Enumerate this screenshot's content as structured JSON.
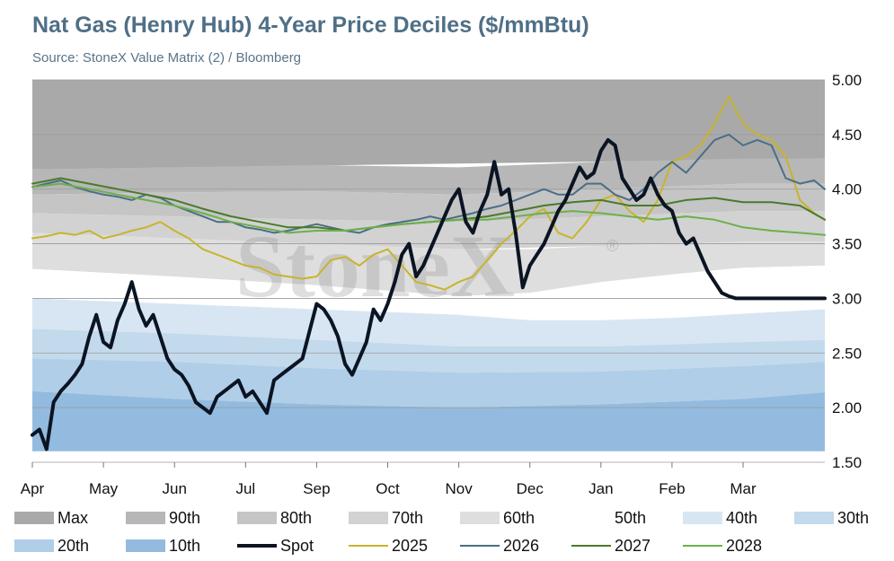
{
  "title": "Nat Gas (Henry Hub) 4-Year Price Deciles ($/mmBtu)",
  "subtitle": "Source: StoneX Value Matrix (2) / Bloomberg",
  "watermark": "StoneX",
  "watermark_mark": "®",
  "chart_data": {
    "type": "area",
    "x_ticks": [
      "Apr",
      "May",
      "Jun",
      "Jul",
      "Sep",
      "Oct",
      "Nov",
      "Dec",
      "Jan",
      "Feb",
      "Mar"
    ],
    "y_ticks": [
      "1.50",
      "2.00",
      "2.50",
      "3.00",
      "3.50",
      "4.00",
      "4.50",
      "5.00"
    ],
    "ylim": [
      1.5,
      5.0
    ],
    "xlim": [
      0,
      11.15
    ],
    "y_axis_position": "right",
    "grid": true,
    "legend_position": "bottom",
    "decile_bands": [
      {
        "name": "Max",
        "color": "#a9a9a9",
        "x": [
          0,
          11.15
        ],
        "upper": [
          5.0,
          5.0
        ],
        "lower": [
          4.18,
          4.28
        ]
      },
      {
        "name": "90th",
        "color": "#b7b7b7",
        "x": [
          0,
          2,
          4,
          6,
          8,
          10,
          11.15
        ],
        "upper": [
          4.18,
          4.2,
          4.22,
          4.2,
          4.25,
          4.28,
          4.28
        ],
        "lower": [
          3.95,
          3.97,
          3.98,
          3.95,
          4.0,
          4.05,
          4.05
        ]
      },
      {
        "name": "80th",
        "color": "#c5c5c5",
        "x": [
          0,
          2,
          4,
          6,
          8,
          10,
          11.15
        ],
        "upper": [
          3.95,
          3.97,
          3.98,
          3.95,
          4.0,
          4.05,
          4.05
        ],
        "lower": [
          3.78,
          3.75,
          3.72,
          3.7,
          3.75,
          3.8,
          3.8
        ]
      },
      {
        "name": "70th",
        "color": "#d2d2d2",
        "x": [
          0,
          2,
          4,
          6,
          8,
          10,
          11.15
        ],
        "upper": [
          3.78,
          3.75,
          3.72,
          3.7,
          3.75,
          3.8,
          3.8
        ],
        "lower": [
          3.6,
          3.55,
          3.5,
          3.45,
          3.48,
          3.52,
          3.52
        ]
      },
      {
        "name": "60th",
        "color": "#dedede",
        "x": [
          0,
          2,
          4,
          6,
          7,
          8,
          9,
          10,
          11.15
        ],
        "upper": [
          3.6,
          3.55,
          3.5,
          3.45,
          3.45,
          3.48,
          3.5,
          3.52,
          3.52
        ],
        "lower": [
          3.27,
          3.2,
          3.12,
          3.02,
          3.05,
          3.15,
          3.22,
          3.28,
          3.3
        ]
      },
      {
        "name": "50th",
        "color": "#ffffff",
        "x": [
          0,
          2,
          4,
          6,
          7,
          8,
          9,
          10,
          11.15
        ],
        "upper": [
          3.27,
          3.2,
          3.12,
          3.02,
          3.05,
          3.15,
          3.22,
          3.28,
          3.3
        ],
        "lower": [
          3.0,
          2.95,
          2.9,
          2.85,
          2.8,
          2.8,
          2.82,
          2.86,
          2.9
        ]
      },
      {
        "name": "40th",
        "color": "#d7e6f2",
        "x": [
          0,
          2,
          4,
          6,
          7,
          8,
          9,
          10,
          11.15
        ],
        "upper": [
          3.0,
          2.95,
          2.9,
          2.85,
          2.8,
          2.8,
          2.82,
          2.86,
          2.9
        ],
        "lower": [
          2.72,
          2.68,
          2.62,
          2.56,
          2.55,
          2.56,
          2.58,
          2.6,
          2.62
        ]
      },
      {
        "name": "30th",
        "color": "#c3d9ec",
        "x": [
          0,
          2,
          4,
          6,
          8,
          10,
          11.15
        ],
        "upper": [
          2.72,
          2.68,
          2.62,
          2.56,
          2.56,
          2.6,
          2.62
        ],
        "lower": [
          2.45,
          2.42,
          2.36,
          2.32,
          2.33,
          2.38,
          2.42
        ]
      },
      {
        "name": "20th",
        "color": "#b0cee7",
        "x": [
          0,
          2,
          4,
          6,
          8,
          10,
          11.15
        ],
        "upper": [
          2.45,
          2.42,
          2.36,
          2.32,
          2.33,
          2.38,
          2.42
        ],
        "lower": [
          2.15,
          2.08,
          2.03,
          2.0,
          2.03,
          2.08,
          2.14
        ]
      },
      {
        "name": "10th",
        "color": "#93bbdf",
        "x": [
          0,
          2,
          4,
          6,
          8,
          10,
          11.15
        ],
        "upper": [
          2.15,
          2.08,
          2.03,
          2.0,
          2.03,
          2.08,
          2.14
        ],
        "lower": [
          1.6,
          1.6,
          1.6,
          1.6,
          1.6,
          1.6,
          1.6
        ]
      }
    ],
    "series": [
      {
        "name": "2025",
        "color": "#c8b42c",
        "width": 2,
        "x": [
          0,
          0.2,
          0.4,
          0.6,
          0.8,
          1.0,
          1.2,
          1.4,
          1.6,
          1.8,
          2.0,
          2.2,
          2.4,
          2.6,
          2.8,
          3.0,
          3.2,
          3.4,
          3.6,
          3.8,
          4.0,
          4.2,
          4.4,
          4.6,
          4.8,
          5.0,
          5.2,
          5.4,
          5.6,
          5.8,
          6.0,
          6.2,
          6.4,
          6.6,
          6.8,
          7.0,
          7.2,
          7.4,
          7.6,
          7.8,
          8.0,
          8.2,
          8.4,
          8.6,
          8.8,
          9.0,
          9.2,
          9.4,
          9.6,
          9.8,
          10.0,
          10.2,
          10.4,
          10.6,
          10.8,
          11.0,
          11.15
        ],
        "y": [
          3.55,
          3.57,
          3.6,
          3.58,
          3.62,
          3.55,
          3.58,
          3.62,
          3.65,
          3.7,
          3.62,
          3.55,
          3.45,
          3.4,
          3.35,
          3.3,
          3.28,
          3.22,
          3.2,
          3.18,
          3.2,
          3.35,
          3.38,
          3.3,
          3.4,
          3.45,
          3.3,
          3.15,
          3.12,
          3.08,
          3.15,
          3.2,
          3.35,
          3.5,
          3.62,
          3.75,
          3.82,
          3.6,
          3.55,
          3.7,
          3.9,
          3.95,
          3.8,
          3.7,
          3.9,
          4.25,
          4.3,
          4.4,
          4.6,
          4.85,
          4.6,
          4.5,
          4.45,
          4.3,
          3.9,
          3.78,
          3.72
        ]
      },
      {
        "name": "2026",
        "color": "#4b6e86",
        "width": 2,
        "x": [
          0,
          0.2,
          0.4,
          0.6,
          0.8,
          1.0,
          1.2,
          1.4,
          1.6,
          1.8,
          2.0,
          2.2,
          2.4,
          2.6,
          2.8,
          3.0,
          3.2,
          3.4,
          3.6,
          3.8,
          4.0,
          4.2,
          4.4,
          4.6,
          4.8,
          5.0,
          5.2,
          5.4,
          5.6,
          5.8,
          6.0,
          6.2,
          6.4,
          6.6,
          6.8,
          7.0,
          7.2,
          7.4,
          7.6,
          7.8,
          8.0,
          8.2,
          8.4,
          8.6,
          8.8,
          9.0,
          9.2,
          9.4,
          9.6,
          9.8,
          10.0,
          10.2,
          10.4,
          10.6,
          10.8,
          11.0,
          11.15
        ],
        "y": [
          4.02,
          4.05,
          4.08,
          4.02,
          3.98,
          3.95,
          3.93,
          3.9,
          3.95,
          3.92,
          3.85,
          3.8,
          3.75,
          3.7,
          3.7,
          3.65,
          3.63,
          3.6,
          3.62,
          3.65,
          3.68,
          3.65,
          3.62,
          3.6,
          3.65,
          3.68,
          3.7,
          3.72,
          3.75,
          3.72,
          3.75,
          3.78,
          3.82,
          3.85,
          3.9,
          3.95,
          4.0,
          3.95,
          3.95,
          4.05,
          4.05,
          3.95,
          3.9,
          4.0,
          4.15,
          4.25,
          4.15,
          4.3,
          4.45,
          4.5,
          4.4,
          4.45,
          4.4,
          4.1,
          4.05,
          4.08,
          4.0
        ]
      },
      {
        "name": "2027",
        "color": "#4a7a2a",
        "width": 2,
        "x": [
          0,
          0.4,
          0.8,
          1.2,
          1.6,
          2.0,
          2.4,
          2.8,
          3.2,
          3.6,
          4.0,
          4.4,
          4.8,
          5.2,
          5.6,
          6.0,
          6.4,
          6.8,
          7.2,
          7.6,
          8.0,
          8.4,
          8.8,
          9.2,
          9.6,
          10.0,
          10.4,
          10.8,
          11.15
        ],
        "y": [
          4.05,
          4.1,
          4.05,
          4.0,
          3.95,
          3.9,
          3.82,
          3.75,
          3.7,
          3.65,
          3.65,
          3.62,
          3.65,
          3.68,
          3.7,
          3.72,
          3.75,
          3.8,
          3.85,
          3.88,
          3.9,
          3.85,
          3.85,
          3.9,
          3.92,
          3.88,
          3.88,
          3.85,
          3.72
        ]
      },
      {
        "name": "2028",
        "color": "#6cb04a",
        "width": 2,
        "x": [
          0,
          0.4,
          0.8,
          1.2,
          1.6,
          2.0,
          2.4,
          2.8,
          3.2,
          3.6,
          4.0,
          4.4,
          4.8,
          5.2,
          5.6,
          6.0,
          6.4,
          6.8,
          7.2,
          7.6,
          8.0,
          8.4,
          8.8,
          9.2,
          9.6,
          10.0,
          10.4,
          10.8,
          11.15
        ],
        "y": [
          4.02,
          4.05,
          4.0,
          3.95,
          3.9,
          3.85,
          3.78,
          3.7,
          3.65,
          3.6,
          3.62,
          3.62,
          3.65,
          3.68,
          3.7,
          3.72,
          3.72,
          3.75,
          3.78,
          3.8,
          3.78,
          3.75,
          3.72,
          3.75,
          3.72,
          3.65,
          3.62,
          3.6,
          3.58
        ]
      },
      {
        "name": "Spot",
        "color": "#0b1423",
        "width": 4,
        "x": [
          0,
          0.1,
          0.2,
          0.3,
          0.4,
          0.5,
          0.6,
          0.7,
          0.8,
          0.9,
          1.0,
          1.1,
          1.2,
          1.3,
          1.4,
          1.5,
          1.6,
          1.7,
          1.8,
          1.9,
          2.0,
          2.1,
          2.2,
          2.3,
          2.4,
          2.5,
          2.6,
          2.7,
          2.8,
          2.9,
          3.0,
          3.1,
          3.2,
          3.3,
          3.4,
          3.5,
          3.6,
          3.7,
          3.8,
          3.9,
          4.0,
          4.1,
          4.2,
          4.3,
          4.4,
          4.5,
          4.6,
          4.7,
          4.8,
          4.9,
          5.0,
          5.1,
          5.2,
          5.3,
          5.4,
          5.5,
          5.6,
          5.7,
          5.8,
          5.9,
          6.0,
          6.1,
          6.2,
          6.3,
          6.4,
          6.5,
          6.6,
          6.7,
          6.8,
          6.9,
          7.0,
          7.1,
          7.2,
          7.3,
          7.4,
          7.5,
          7.6,
          7.7,
          7.8,
          7.9,
          8.0,
          8.1,
          8.2,
          8.3,
          8.4,
          8.5,
          8.6,
          8.7,
          8.8,
          8.9,
          9.0,
          9.1,
          9.2,
          9.3,
          9.4,
          9.5,
          9.6,
          9.7,
          9.8,
          9.9,
          10.0,
          10.1,
          10.2,
          10.3,
          10.4,
          10.5,
          10.6,
          10.7,
          10.8,
          10.9,
          11.0,
          11.1,
          11.15
        ],
        "y": [
          1.75,
          1.8,
          1.62,
          2.05,
          2.15,
          2.22,
          2.3,
          2.4,
          2.65,
          2.85,
          2.6,
          2.55,
          2.8,
          2.95,
          3.15,
          2.9,
          2.75,
          2.85,
          2.65,
          2.45,
          2.35,
          2.3,
          2.2,
          2.05,
          2.0,
          1.95,
          2.1,
          2.15,
          2.2,
          2.25,
          2.1,
          2.15,
          2.05,
          1.95,
          2.25,
          2.3,
          2.35,
          2.4,
          2.45,
          2.7,
          2.95,
          2.9,
          2.8,
          2.65,
          2.4,
          2.3,
          2.45,
          2.6,
          2.9,
          2.8,
          2.95,
          3.15,
          3.4,
          3.5,
          3.2,
          3.3,
          3.45,
          3.6,
          3.75,
          3.9,
          4.0,
          3.7,
          3.6,
          3.8,
          3.95,
          4.25,
          3.95,
          4.0,
          3.6,
          3.1,
          3.3,
          3.4,
          3.5,
          3.65,
          3.8,
          3.9,
          4.05,
          4.2,
          4.1,
          4.15,
          4.35,
          4.45,
          4.4,
          4.1,
          4.0,
          3.9,
          3.95,
          4.1,
          3.95,
          3.85,
          3.8,
          3.6,
          3.5,
          3.55,
          3.4,
          3.25,
          3.15,
          3.05,
          3.02,
          3.0,
          3.0,
          3.0,
          3.0,
          3.0,
          3.0,
          3.0,
          3.0,
          3.0,
          3.0,
          3.0,
          3.0,
          3.0,
          3.0
        ]
      }
    ]
  },
  "legend": [
    {
      "label": "Max",
      "kind": "box",
      "color": "#a9a9a9"
    },
    {
      "label": "90th",
      "kind": "box",
      "color": "#b7b7b7"
    },
    {
      "label": "80th",
      "kind": "box",
      "color": "#c5c5c5"
    },
    {
      "label": "70th",
      "kind": "box",
      "color": "#d2d2d2"
    },
    {
      "label": "60th",
      "kind": "box",
      "color": "#dedede"
    },
    {
      "label": "50th",
      "kind": "box",
      "color": "#ffffff"
    },
    {
      "label": "40th",
      "kind": "box",
      "color": "#d7e6f2"
    },
    {
      "label": "30th",
      "kind": "box",
      "color": "#c3d9ec"
    },
    {
      "label": "20th",
      "kind": "box",
      "color": "#b0cee7"
    },
    {
      "label": "10th",
      "kind": "box",
      "color": "#93bbdf"
    },
    {
      "label": "Spot",
      "kind": "line",
      "color": "#0b1423"
    },
    {
      "label": "2025",
      "kind": "line",
      "color": "#c8b42c"
    },
    {
      "label": "2026",
      "kind": "line",
      "color": "#4b6e86"
    },
    {
      "label": "2027",
      "kind": "line",
      "color": "#4a7a2a"
    },
    {
      "label": "2028",
      "kind": "line",
      "color": "#6cb04a"
    }
  ]
}
